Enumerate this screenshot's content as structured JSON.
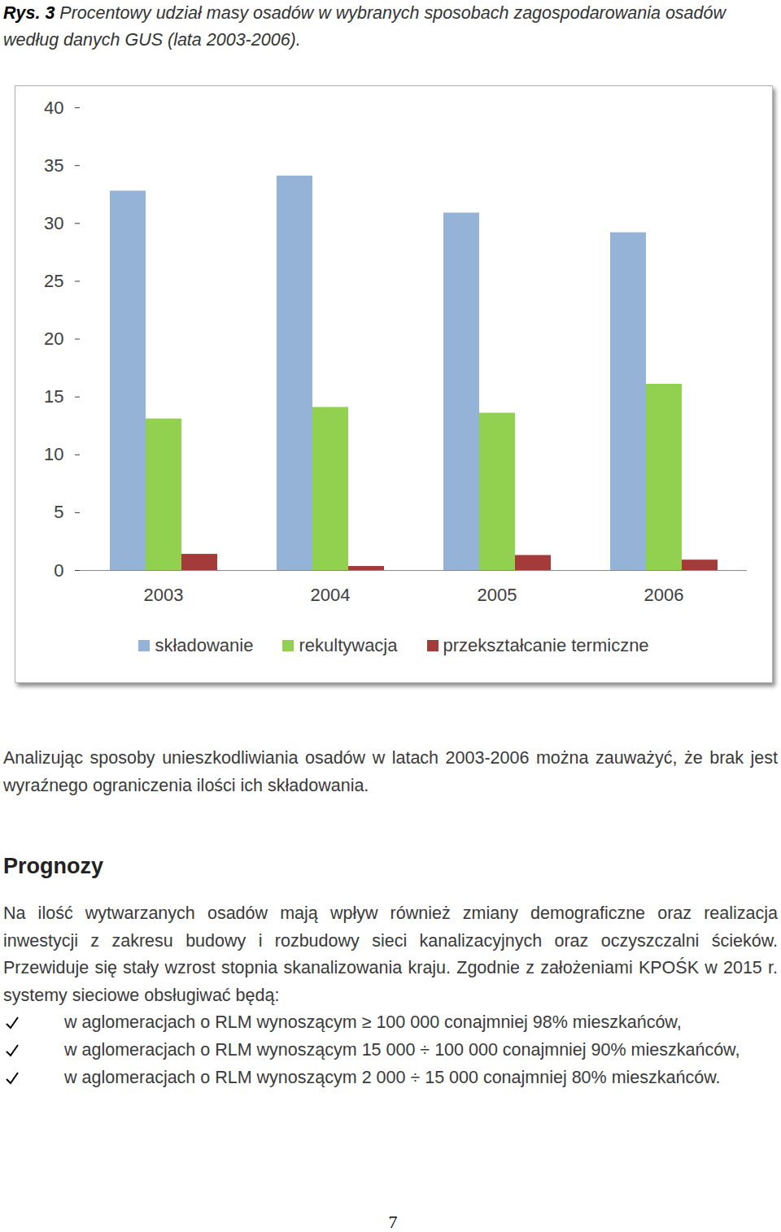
{
  "document": {
    "figure_label": "Rys. 3",
    "caption": "Procentowy udział masy osadów w wybranych sposobach zagospodarowania osadów według danych GUS (lata 2003-2006).",
    "paragraph1": "Analizując sposoby unieszkodliwiania osadów w latach 2003-2006 można zauważyć, że brak jest wyraźnego ograniczenia ilości ich składowania.",
    "heading": "Prognozy",
    "paragraph2": "Na ilość wytwarzanych osadów mają wpływ również zmiany demograficzne oraz realizacja inwestycji z zakresu budowy i rozbudowy sieci kanalizacyjnych oraz oczyszczalni ścieków. Przewiduje się stały wzrost stopnia skanalizowania kraju. Zgodnie z założeniami KPOŚK w 2015 r. systemy sieciowe obsługiwać będą:",
    "bullets": [
      "w aglomeracjach o RLM wynoszącym ≥ 100 000 conajmniej 98% mieszkańców,",
      "w aglomeracjach o RLM wynoszącym 15 000 ÷ 100 000 conajmniej 90% mieszkańców,",
      "w aglomeracjach o RLM wynoszącym 2 000 ÷ 15 000 conajmniej 80% mieszkańców."
    ],
    "page_number": "7"
  },
  "chart_data": {
    "type": "bar",
    "categories": [
      "2003",
      "2004",
      "2005",
      "2006"
    ],
    "series": [
      {
        "name": "składowanie",
        "color": "#95b3d7",
        "values": [
          32.8,
          34.1,
          30.9,
          29.2
        ]
      },
      {
        "name": "rekultywacja",
        "color": "#92d050",
        "values": [
          13.1,
          14.1,
          13.6,
          16.1
        ]
      },
      {
        "name": "przekształcanie termiczne",
        "color": "#a33b3b",
        "values": [
          1.4,
          0.35,
          1.3,
          0.9
        ]
      }
    ],
    "ylim": [
      0,
      40
    ],
    "yticks": [
      0,
      5,
      10,
      15,
      20,
      25,
      30,
      35,
      40
    ],
    "grid": false,
    "legend": "bottom"
  }
}
